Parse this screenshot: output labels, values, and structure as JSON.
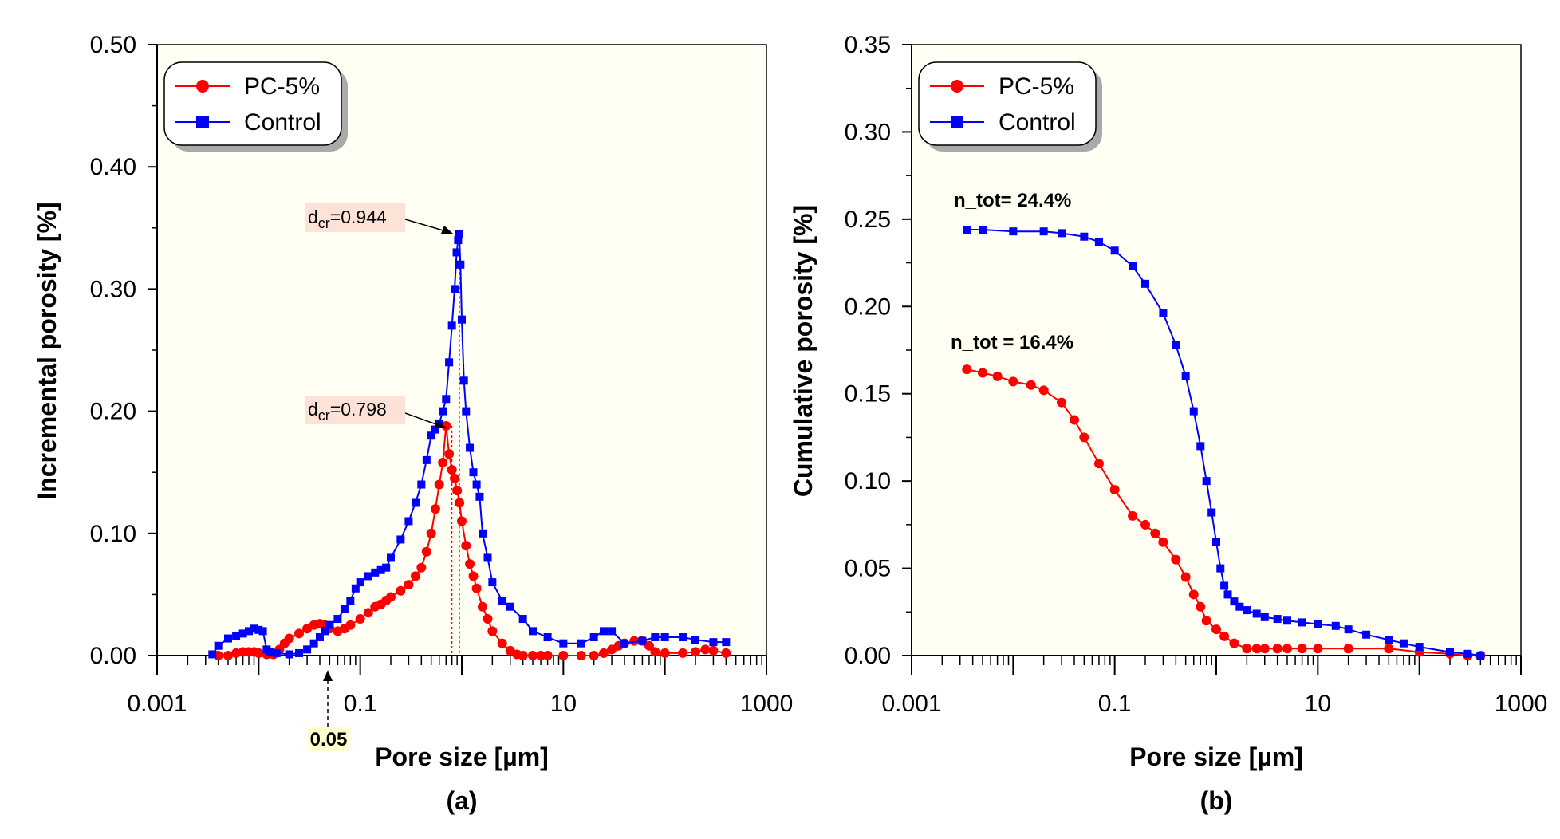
{
  "colors": {
    "pc5": "#ff0000",
    "control": "#0000ff",
    "plot_bg": "#fffff3",
    "box_fill": "#fde3d7",
    "box_yellow": "#ffffd0"
  },
  "chart_data": [
    {
      "type": "line",
      "panel_label": "(a)",
      "xlabel": "Pore size [µm]",
      "ylabel": "Incremental porosity [%]",
      "xscale": "log",
      "xlim": [
        0.001,
        1000
      ],
      "ylim": [
        0,
        0.5
      ],
      "x_ticks": [
        "0.001",
        "0.1",
        "10",
        "1000"
      ],
      "y_ticks": [
        "0.00",
        "0.10",
        "0.20",
        "0.30",
        "0.40",
        "0.50"
      ],
      "legend": {
        "position": "top-left",
        "entries": [
          "PC-5%",
          "Control"
        ]
      },
      "series": [
        {
          "name": "PC-5%",
          "marker": "circle",
          "x": [
            0.004,
            0.005,
            0.006,
            0.007,
            0.008,
            0.009,
            0.01,
            0.012,
            0.014,
            0.016,
            0.018,
            0.02,
            0.025,
            0.03,
            0.035,
            0.04,
            0.045,
            0.05,
            0.06,
            0.07,
            0.08,
            0.1,
            0.12,
            0.14,
            0.16,
            0.18,
            0.2,
            0.25,
            0.3,
            0.35,
            0.4,
            0.45,
            0.5,
            0.55,
            0.6,
            0.65,
            0.7,
            0.75,
            0.8,
            0.85,
            0.9,
            0.95,
            1.0,
            1.1,
            1.2,
            1.3,
            1.4,
            1.6,
            1.8,
            2.0,
            2.5,
            3.0,
            3.5,
            4.0,
            5.0,
            6.0,
            7.0,
            10,
            15,
            20,
            25,
            30,
            35,
            40,
            50,
            60,
            70,
            80,
            100,
            150,
            200,
            250,
            300,
            400
          ],
          "y": [
            0.0,
            0.0,
            0.002,
            0.003,
            0.003,
            0.003,
            0.002,
            0.001,
            0.001,
            0.005,
            0.01,
            0.014,
            0.018,
            0.022,
            0.025,
            0.026,
            0.025,
            0.022,
            0.02,
            0.022,
            0.025,
            0.03,
            0.035,
            0.04,
            0.042,
            0.045,
            0.048,
            0.053,
            0.058,
            0.065,
            0.072,
            0.085,
            0.1,
            0.12,
            0.14,
            0.158,
            0.188,
            0.165,
            0.152,
            0.145,
            0.135,
            0.125,
            0.11,
            0.09,
            0.075,
            0.065,
            0.055,
            0.04,
            0.03,
            0.02,
            0.01,
            0.004,
            0.001,
            0.0,
            0.0,
            0.0,
            0.0,
            0.0,
            0.0,
            0.0,
            0.002,
            0.005,
            0.008,
            0.01,
            0.012,
            0.012,
            0.008,
            0.003,
            0.002,
            0.002,
            0.003,
            0.005,
            0.004,
            0.002
          ]
        },
        {
          "name": "Control",
          "marker": "square",
          "x": [
            0.0035,
            0.004,
            0.005,
            0.006,
            0.007,
            0.008,
            0.009,
            0.01,
            0.011,
            0.012,
            0.013,
            0.015,
            0.02,
            0.025,
            0.03,
            0.035,
            0.04,
            0.045,
            0.05,
            0.06,
            0.07,
            0.08,
            0.09,
            0.1,
            0.12,
            0.14,
            0.16,
            0.18,
            0.2,
            0.25,
            0.3,
            0.35,
            0.4,
            0.45,
            0.5,
            0.55,
            0.6,
            0.65,
            0.7,
            0.75,
            0.8,
            0.85,
            0.89,
            0.92,
            0.944,
            0.97,
            1.0,
            1.05,
            1.1,
            1.2,
            1.3,
            1.4,
            1.5,
            1.6,
            1.8,
            2.0,
            2.5,
            3.0,
            4.0,
            5.0,
            7.0,
            10,
            15,
            20,
            25,
            30,
            40,
            60,
            80,
            100,
            150,
            200,
            300,
            400
          ],
          "y": [
            0.001,
            0.008,
            0.014,
            0.016,
            0.018,
            0.02,
            0.022,
            0.021,
            0.02,
            0.005,
            0.003,
            0.002,
            0.001,
            0.002,
            0.005,
            0.01,
            0.015,
            0.02,
            0.025,
            0.03,
            0.038,
            0.045,
            0.055,
            0.06,
            0.065,
            0.068,
            0.07,
            0.072,
            0.08,
            0.095,
            0.11,
            0.125,
            0.14,
            0.16,
            0.18,
            0.185,
            0.19,
            0.2,
            0.21,
            0.24,
            0.27,
            0.3,
            0.33,
            0.34,
            0.345,
            0.32,
            0.275,
            0.225,
            0.2,
            0.17,
            0.15,
            0.14,
            0.13,
            0.1,
            0.08,
            0.06,
            0.045,
            0.04,
            0.03,
            0.02,
            0.015,
            0.01,
            0.01,
            0.015,
            0.02,
            0.02,
            0.01,
            0.012,
            0.015,
            0.015,
            0.015,
            0.013,
            0.011,
            0.011
          ]
        }
      ],
      "annotations": [
        {
          "sub_main": "d",
          "sub": "cr",
          "text": "=0.944",
          "x": 0.944,
          "y": 0.345
        },
        {
          "sub_main": "d",
          "sub": "cr",
          "text": "=0.798",
          "x": 0.798,
          "y": 0.188
        },
        {
          "text": "0.05",
          "x": 0.05
        }
      ]
    },
    {
      "type": "line",
      "panel_label": "(b)",
      "xlabel": "Pore size [µm]",
      "ylabel": "Cumulative porosity [%]",
      "xscale": "log",
      "xlim": [
        0.001,
        1000
      ],
      "ylim": [
        0,
        0.35
      ],
      "x_ticks": [
        "0.001",
        "0.1",
        "10",
        "1000"
      ],
      "y_ticks": [
        "0.00",
        "0.05",
        "0.10",
        "0.15",
        "0.20",
        "0.25",
        "0.30",
        "0.35"
      ],
      "legend": {
        "position": "top-left",
        "entries": [
          "PC-5%",
          "Control"
        ]
      },
      "series": [
        {
          "name": "PC-5%",
          "marker": "circle",
          "x": [
            0.0035,
            0.005,
            0.007,
            0.01,
            0.015,
            0.02,
            0.03,
            0.04,
            0.05,
            0.07,
            0.1,
            0.15,
            0.2,
            0.25,
            0.3,
            0.4,
            0.5,
            0.6,
            0.7,
            0.8,
            1.0,
            1.2,
            1.5,
            2.0,
            2.5,
            3.0,
            4.0,
            5.0,
            7.0,
            10,
            20,
            50,
            100,
            200,
            300,
            400
          ],
          "y": [
            0.164,
            0.162,
            0.16,
            0.157,
            0.155,
            0.152,
            0.145,
            0.135,
            0.125,
            0.11,
            0.095,
            0.08,
            0.075,
            0.07,
            0.065,
            0.055,
            0.045,
            0.035,
            0.028,
            0.02,
            0.015,
            0.011,
            0.007,
            0.004,
            0.004,
            0.004,
            0.004,
            0.004,
            0.004,
            0.004,
            0.004,
            0.004,
            0.002,
            0.001,
            0.0,
            0.0
          ]
        },
        {
          "name": "Control",
          "marker": "square",
          "x": [
            0.0035,
            0.005,
            0.01,
            0.02,
            0.03,
            0.05,
            0.07,
            0.1,
            0.15,
            0.2,
            0.3,
            0.4,
            0.5,
            0.6,
            0.7,
            0.8,
            0.9,
            1.0,
            1.1,
            1.2,
            1.3,
            1.5,
            1.7,
            2.0,
            2.5,
            3.0,
            4.0,
            5.0,
            7.0,
            10,
            15,
            20,
            30,
            50,
            70,
            100,
            200,
            300,
            400
          ],
          "y": [
            0.244,
            0.244,
            0.243,
            0.243,
            0.242,
            0.24,
            0.237,
            0.232,
            0.223,
            0.213,
            0.196,
            0.178,
            0.16,
            0.14,
            0.12,
            0.1,
            0.082,
            0.065,
            0.05,
            0.04,
            0.035,
            0.031,
            0.028,
            0.026,
            0.024,
            0.022,
            0.021,
            0.02,
            0.019,
            0.018,
            0.017,
            0.015,
            0.012,
            0.009,
            0.007,
            0.005,
            0.002,
            0.001,
            0.0
          ]
        }
      ],
      "annotations": [
        {
          "text": "n_tot= 24.4%",
          "series": "Control"
        },
        {
          "text": "n_tot = 16.4%",
          "series": "PC-5%"
        }
      ]
    }
  ]
}
